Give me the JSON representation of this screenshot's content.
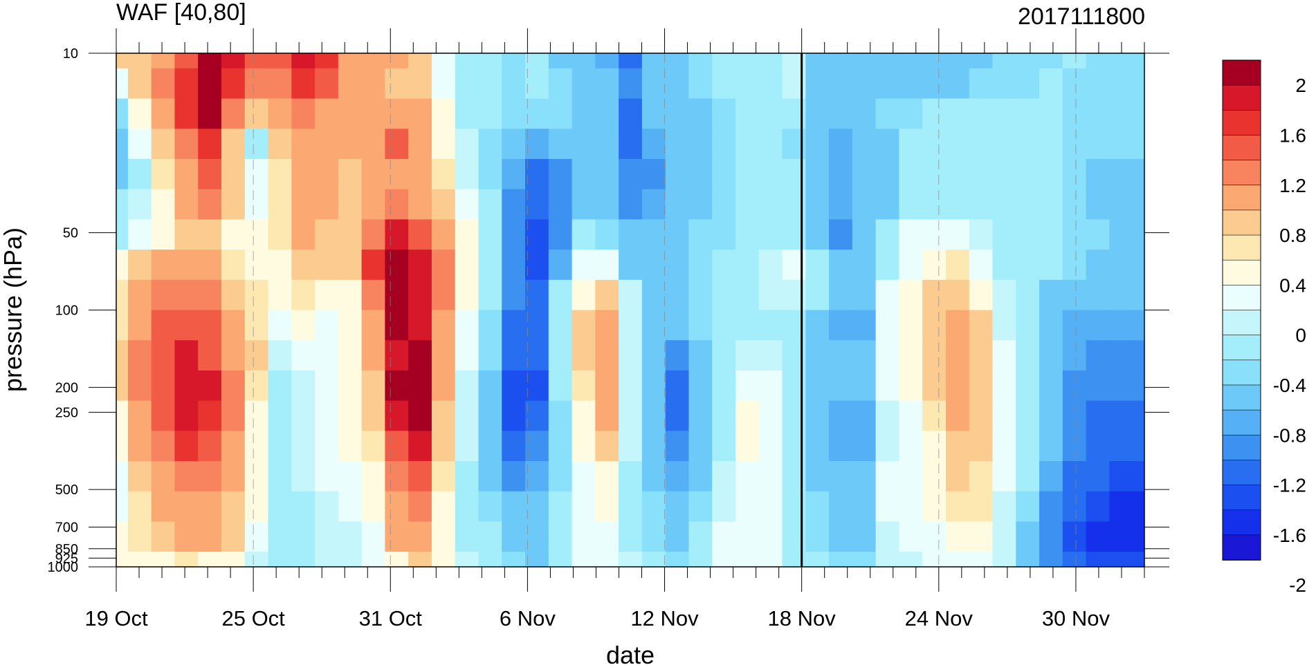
{
  "chart_data": {
    "type": "heatmap",
    "title": "WAF [40,80]",
    "right_title": "2017111800",
    "xlabel": "date",
    "ylabel": "pressure (hPa)",
    "x_tick_labels": [
      "19 Oct",
      "25 Oct",
      "31 Oct",
      "6 Nov",
      "12 Nov",
      "18 Nov",
      "24 Nov",
      "30 Nov"
    ],
    "x_tick_days": [
      0,
      6,
      12,
      18,
      24,
      30,
      36,
      42
    ],
    "x_range_days": [
      0,
      45
    ],
    "y_tick_labels": [
      "10",
      "50",
      "100",
      "200",
      "250",
      "500",
      "700",
      "850",
      "925",
      "1000"
    ],
    "y_tick_values": [
      10,
      50,
      100,
      200,
      250,
      500,
      700,
      850,
      925,
      1000
    ],
    "y_scale": "log-pressure, reversed",
    "marker_date": "18 Nov",
    "colorbar": {
      "labels": [
        "2",
        "1.6",
        "1.2",
        "0.8",
        "0.4",
        "0",
        "-0.4",
        "-0.8",
        "-1.2",
        "-1.6",
        "-2"
      ],
      "colors": [
        "#a50021",
        "#d7182a",
        "#e8332f",
        "#f25c46",
        "#f7845f",
        "#fba873",
        "#fbcb8f",
        "#fde8b2",
        "#fffbe0",
        "#eafffd",
        "#c5f6fb",
        "#a4edfb",
        "#89e0fb",
        "#6dcaf8",
        "#55b0f5",
        "#3d91f0",
        "#276ff0",
        "#1b4fef",
        "#1530ea",
        "#1b17d6"
      ]
    },
    "values": [
      [
        0.6,
        0.7,
        1.0,
        1.4,
        1.9,
        1.7,
        1.3,
        1.3,
        1.6,
        1.5,
        1.0,
        0.8,
        0.8,
        0.6,
        0.2,
        -0.3,
        -0.4,
        -0.5,
        -0.3,
        -0.6,
        -0.8,
        -0.9,
        -1.3,
        -0.7,
        -0.6,
        -0.5,
        -0.4,
        -0.3,
        -0.2,
        -0.1,
        -0.6,
        -0.6,
        -0.6,
        -0.7,
        -0.6,
        -0.6,
        -0.6,
        -0.6,
        -0.5,
        -0.5,
        -0.5,
        -0.4,
        -0.5,
        -0.5,
        -0.5
      ],
      [
        0.2,
        0.6,
        1.1,
        1.5,
        1.9,
        1.5,
        1.1,
        1.2,
        1.5,
        1.3,
        1.0,
        0.8,
        0.7,
        0.6,
        0.2,
        -0.3,
        -0.4,
        -0.5,
        -0.4,
        -0.5,
        -0.7,
        -0.8,
        -1.1,
        -0.8,
        -0.6,
        -0.5,
        -0.4,
        -0.3,
        -0.2,
        -0.1,
        -0.6,
        -0.6,
        -0.6,
        -0.6,
        -0.6,
        -0.6,
        -0.6,
        -0.5,
        -0.5,
        -0.5,
        -0.4,
        -0.5,
        -0.5,
        -0.5,
        -0.5
      ],
      [
        -0.5,
        0.4,
        0.9,
        1.5,
        1.8,
        1.2,
        0.6,
        1.0,
        1.2,
        1.0,
        0.9,
        0.8,
        1.0,
        0.9,
        0.3,
        -0.2,
        -0.4,
        -0.5,
        -0.5,
        -0.5,
        -0.6,
        -0.8,
        -1.2,
        -0.8,
        -0.7,
        -0.6,
        -0.5,
        -0.4,
        -0.3,
        -0.4,
        -0.6,
        -0.8,
        -0.7,
        -0.5,
        -0.5,
        -0.4,
        -0.4,
        -0.3,
        -0.4,
        -0.4,
        -0.4,
        -0.5,
        -0.5,
        -0.5,
        -0.5
      ],
      [
        -0.7,
        0.2,
        0.6,
        1.2,
        1.5,
        0.7,
        -0.3,
        0.6,
        1.0,
        0.8,
        0.8,
        1.0,
        1.3,
        1.0,
        0.4,
        -0.1,
        -0.5,
        -0.7,
        -0.9,
        -0.7,
        -0.6,
        -0.8,
        -1.2,
        -0.9,
        -0.7,
        -0.6,
        -0.5,
        -0.4,
        -0.3,
        -0.5,
        -0.7,
        -0.9,
        -0.8,
        -0.6,
        -0.4,
        -0.3,
        -0.3,
        -0.3,
        -0.3,
        -0.4,
        -0.4,
        -0.5,
        -0.5,
        -0.5,
        -0.5
      ],
      [
        -0.8,
        -0.2,
        0.5,
        1.0,
        1.4,
        0.7,
        0.2,
        0.5,
        1.0,
        0.8,
        0.7,
        0.9,
        1.0,
        0.9,
        0.5,
        0.0,
        -0.5,
        -0.9,
        -1.2,
        -1.0,
        -0.6,
        -0.8,
        -1.1,
        -1.0,
        -0.8,
        -0.6,
        -0.5,
        -0.4,
        -0.3,
        -0.4,
        -0.8,
        -0.9,
        -0.8,
        -0.6,
        -0.4,
        -0.2,
        -0.2,
        -0.2,
        -0.3,
        -0.4,
        -0.4,
        -0.5,
        -0.6,
        -0.6,
        -0.6
      ],
      [
        -0.4,
        0.0,
        0.4,
        0.8,
        1.1,
        0.6,
        0.2,
        0.5,
        0.9,
        0.8,
        0.7,
        0.9,
        1.1,
        1.0,
        0.6,
        0.2,
        -0.4,
        -1.0,
        -1.3,
        -1.1,
        -0.6,
        -0.7,
        -1.0,
        -0.9,
        -0.8,
        -0.6,
        -0.5,
        -0.4,
        -0.3,
        -0.4,
        -0.8,
        -0.9,
        -0.8,
        -0.6,
        -0.4,
        -0.2,
        -0.2,
        -0.2,
        -0.3,
        -0.4,
        -0.4,
        -0.5,
        -0.6,
        -0.6,
        -0.6
      ],
      [
        -0.2,
        0.2,
        0.4,
        0.7,
        0.7,
        0.4,
        0.4,
        0.5,
        0.9,
        0.7,
        0.6,
        1.2,
        1.7,
        1.4,
        0.9,
        0.3,
        -0.3,
        -1.1,
        -1.4,
        -1.0,
        -0.3,
        -0.5,
        -0.8,
        -0.8,
        -0.7,
        -0.5,
        -0.5,
        -0.3,
        -0.2,
        -0.4,
        -0.8,
        -1.1,
        -0.7,
        -0.3,
        0.1,
        0.2,
        0.2,
        0.0,
        -0.3,
        -0.4,
        -0.4,
        -0.5,
        -0.5,
        -0.6,
        -0.6
      ],
      [
        0.3,
        0.6,
        0.9,
        1.0,
        0.9,
        0.5,
        0.4,
        0.3,
        0.7,
        0.6,
        0.6,
        1.5,
        1.9,
        1.6,
        1.1,
        0.3,
        -0.3,
        -1.0,
        -1.5,
        -0.9,
        0.1,
        0.1,
        -0.6,
        -0.7,
        -0.6,
        -0.5,
        -0.4,
        -0.3,
        -0.1,
        0.2,
        -0.4,
        -0.6,
        -0.7,
        -0.2,
        0.2,
        0.4,
        0.5,
        0.2,
        -0.2,
        -0.4,
        -0.4,
        -0.5,
        -0.6,
        -0.6,
        -0.7
      ],
      [
        0.5,
        0.8,
        1.2,
        1.2,
        1.1,
        0.7,
        0.5,
        0.3,
        0.5,
        0.3,
        0.3,
        1.1,
        1.9,
        1.7,
        1.1,
        0.3,
        -0.4,
        -1.0,
        -1.2,
        -0.4,
        0.4,
        0.6,
        -0.1,
        -0.6,
        -0.6,
        -0.5,
        -0.4,
        -0.3,
        -0.1,
        0.0,
        -0.4,
        -0.6,
        -0.7,
        0.1,
        0.3,
        0.6,
        0.7,
        0.4,
        -0.1,
        -0.4,
        -0.6,
        -0.7,
        -0.7,
        -0.8,
        -0.8
      ],
      [
        0.5,
        1.0,
        1.3,
        1.4,
        1.3,
        0.9,
        0.5,
        0.1,
        0.3,
        0.2,
        0.3,
        0.9,
        1.8,
        1.7,
        1.0,
        0.2,
        -0.5,
        -1.2,
        -1.2,
        -0.4,
        0.6,
        0.9,
        0.0,
        -0.8,
        -0.8,
        -0.5,
        -0.3,
        -0.2,
        -0.2,
        -0.4,
        -0.7,
        -0.9,
        -0.9,
        0.2,
        0.4,
        0.7,
        0.9,
        0.6,
        0.0,
        -0.4,
        -0.7,
        -0.9,
        -0.9,
        -0.9,
        -0.9
      ],
      [
        0.6,
        1.1,
        1.4,
        1.6,
        1.4,
        1.0,
        0.6,
        -0.1,
        0.1,
        0.2,
        0.3,
        0.8,
        1.7,
        1.8,
        0.9,
        0.1,
        -0.5,
        -1.3,
        -1.3,
        -0.3,
        0.6,
        0.9,
        0.0,
        -0.8,
        -1.1,
        -0.6,
        -0.3,
        0.0,
        -0.1,
        -0.4,
        -0.6,
        -0.8,
        -0.7,
        0.2,
        0.4,
        0.7,
        0.9,
        0.7,
        0.1,
        -0.3,
        -0.6,
        -0.9,
        -1.0,
        -1.0,
        -1.0
      ],
      [
        0.6,
        1.1,
        1.4,
        1.7,
        1.6,
        1.1,
        0.5,
        -0.2,
        0.0,
        0.2,
        0.3,
        0.7,
        1.8,
        1.9,
        0.8,
        0.0,
        -0.7,
        -1.5,
        -1.4,
        -0.4,
        0.5,
        0.9,
        0.0,
        -0.7,
        -1.3,
        -0.7,
        -0.3,
        0.2,
        0.1,
        -0.3,
        -0.6,
        -0.8,
        -0.8,
        0.1,
        0.3,
        0.6,
        0.9,
        0.7,
        0.1,
        -0.3,
        -0.8,
        -1.0,
        -1.1,
        -1.1,
        -1.1
      ],
      [
        0.4,
        1.0,
        1.3,
        1.6,
        1.5,
        1.1,
        0.4,
        -0.3,
        -0.1,
        0.1,
        0.3,
        0.6,
        1.6,
        1.8,
        0.7,
        -0.1,
        -0.7,
        -1.4,
        -1.2,
        -0.5,
        0.4,
        0.8,
        -0.1,
        -0.6,
        -1.2,
        -0.8,
        -0.3,
        0.3,
        0.2,
        -0.2,
        -0.6,
        -0.9,
        -0.9,
        0.0,
        0.2,
        0.5,
        0.8,
        0.7,
        0.1,
        -0.3,
        -0.8,
        -1.1,
        -1.2,
        -1.2,
        -1.2
      ],
      [
        0.3,
        0.9,
        1.2,
        1.5,
        1.4,
        1.0,
        0.3,
        -0.2,
        -0.1,
        0.1,
        0.3,
        0.5,
        1.4,
        1.7,
        0.6,
        -0.1,
        -0.7,
        -1.2,
        -1.1,
        -0.5,
        0.3,
        0.6,
        -0.1,
        -0.6,
        -1.0,
        -0.7,
        -0.2,
        0.3,
        0.2,
        -0.2,
        -0.6,
        -0.9,
        -0.9,
        0.0,
        0.2,
        0.4,
        0.7,
        0.6,
        0.1,
        -0.3,
        -0.8,
        -1.1,
        -1.2,
        -1.3,
        -1.3
      ],
      [
        0.2,
        0.7,
        1.0,
        1.2,
        1.1,
        0.8,
        0.3,
        -0.2,
        -0.1,
        0.1,
        0.2,
        0.4,
        1.1,
        1.4,
        0.5,
        -0.2,
        -0.6,
        -1.0,
        -0.9,
        -0.5,
        0.2,
        0.4,
        -0.2,
        -0.6,
        -0.9,
        -0.6,
        -0.1,
        0.2,
        0.2,
        -0.2,
        -0.6,
        -0.8,
        -0.8,
        0.1,
        0.2,
        0.4,
        0.6,
        0.5,
        0.1,
        -0.4,
        -0.9,
        -1.2,
        -1.3,
        -1.4,
        -1.5
      ],
      [
        0.2,
        0.5,
        0.8,
        1.0,
        0.9,
        0.7,
        0.3,
        -0.3,
        -0.2,
        0.0,
        0.1,
        0.3,
        0.9,
        1.2,
        0.4,
        -0.2,
        -0.5,
        -0.8,
        -0.8,
        -0.4,
        0.1,
        0.3,
        -0.2,
        -0.5,
        -0.8,
        -0.5,
        0.0,
        0.2,
        0.2,
        -0.2,
        -0.5,
        -0.7,
        -0.7,
        0.1,
        0.1,
        0.3,
        0.5,
        0.5,
        0.0,
        -0.5,
        -1.0,
        -1.3,
        -1.5,
        -1.6,
        -1.6
      ],
      [
        0.3,
        0.5,
        0.7,
        0.9,
        0.8,
        0.6,
        0.2,
        -0.3,
        -0.3,
        0.0,
        0.0,
        0.2,
        0.8,
        1.0,
        0.4,
        -0.2,
        -0.4,
        -0.6,
        -0.7,
        -0.3,
        0.1,
        0.2,
        -0.2,
        -0.5,
        -0.7,
        -0.4,
        0.1,
        0.2,
        0.1,
        -0.2,
        -0.5,
        -0.7,
        -0.7,
        0.0,
        0.1,
        0.2,
        0.4,
        0.4,
        0.0,
        -0.6,
        -1.1,
        -1.5,
        -1.6,
        -1.7,
        -1.7
      ],
      [
        0.4,
        0.3,
        0.4,
        0.5,
        0.4,
        0.3,
        0.0,
        -0.4,
        -0.4,
        -0.1,
        -0.1,
        0.1,
        0.4,
        0.6,
        0.3,
        -0.1,
        -0.3,
        -0.5,
        -0.6,
        -0.2,
        0.1,
        0.2,
        -0.1,
        -0.4,
        -0.5,
        -0.3,
        0.1,
        0.2,
        0.1,
        -0.2,
        -0.4,
        -0.5,
        -0.5,
        -0.1,
        0.0,
        0.1,
        0.2,
        0.2,
        -0.1,
        -0.6,
        -1.0,
        -1.3,
        -1.4,
        -1.5,
        -1.5
      ]
    ]
  }
}
